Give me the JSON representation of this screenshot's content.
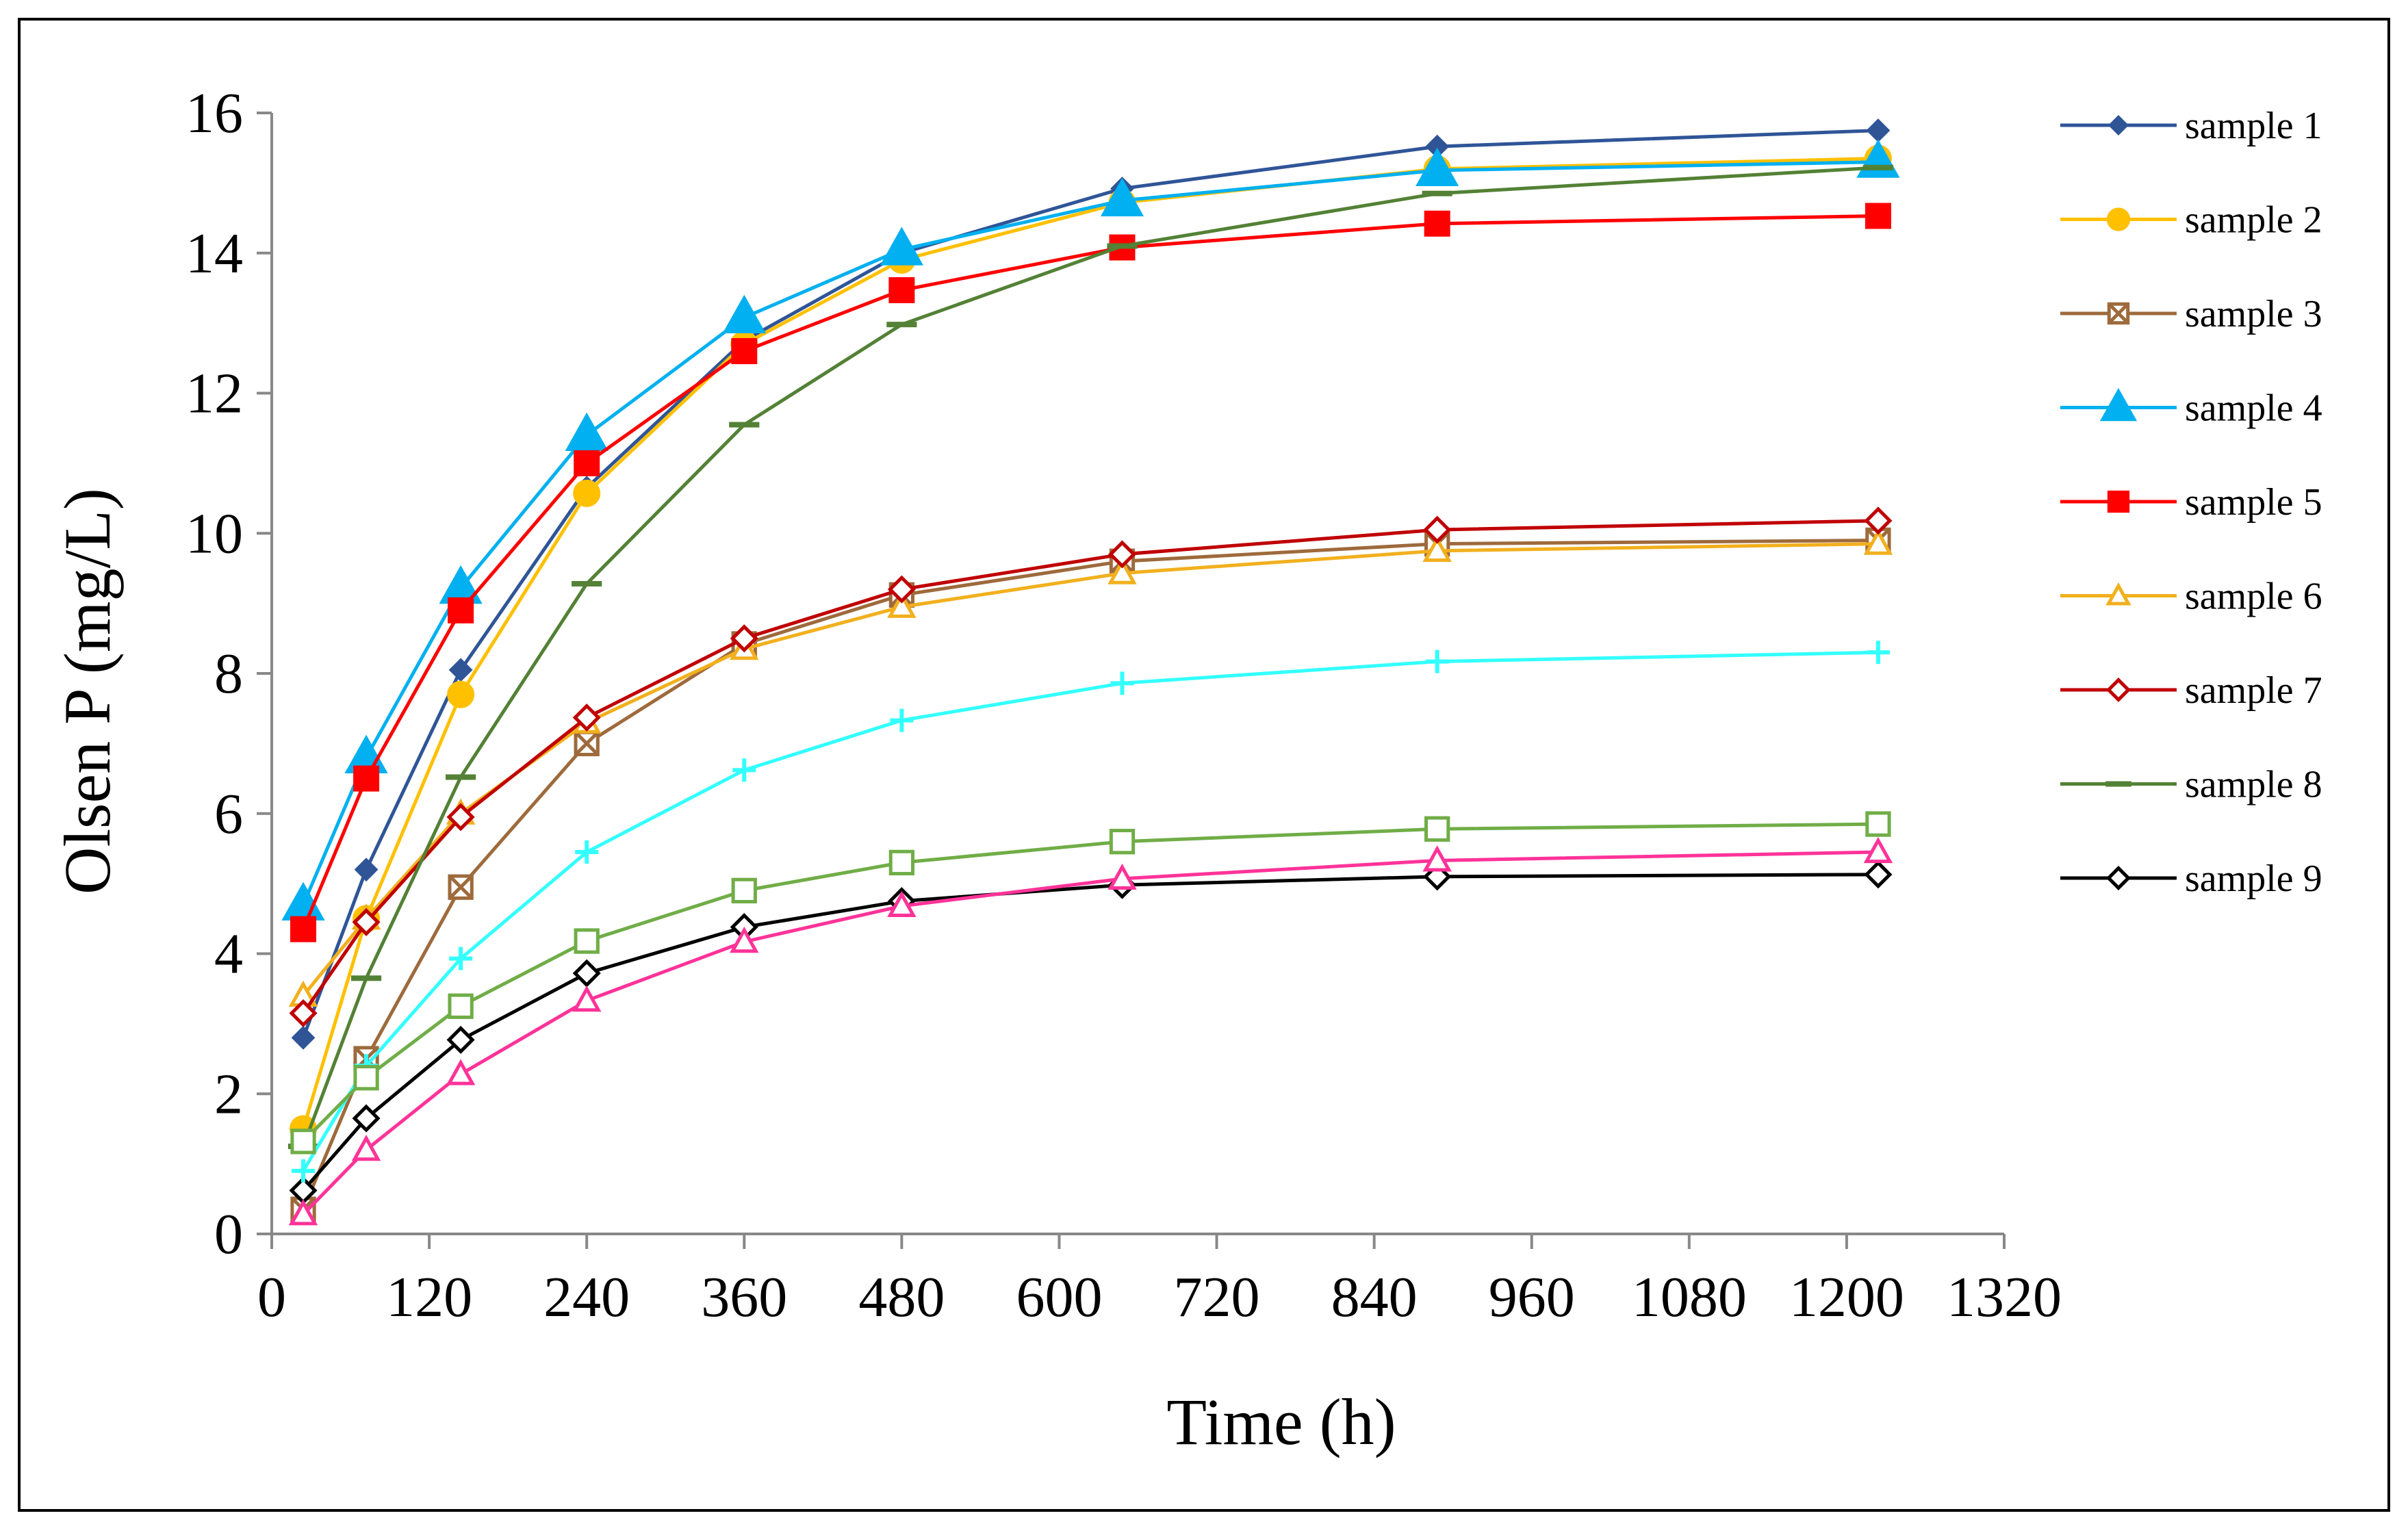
{
  "chart_data": {
    "type": "line",
    "title": "",
    "xlabel": "Time (h)",
    "ylabel": "Olsen P (mg/L)",
    "xlim": [
      0,
      1320
    ],
    "ylim": [
      0,
      16
    ],
    "xticks": [
      0,
      120,
      240,
      360,
      480,
      600,
      720,
      840,
      960,
      1080,
      1200,
      1320
    ],
    "yticks": [
      0,
      2,
      4,
      6,
      8,
      10,
      12,
      14,
      16
    ],
    "grid": false,
    "legend_position": "right",
    "x": [
      24,
      72,
      144,
      240,
      360,
      480,
      648,
      888,
      1224
    ],
    "series": [
      {
        "name": "sample 1",
        "color": "#2F5597",
        "marker": "diamond-filled",
        "values": [
          2.8,
          5.2,
          8.05,
          10.65,
          12.75,
          14.0,
          14.92,
          15.52,
          15.75
        ]
      },
      {
        "name": "sample 2",
        "color": "#FFC000",
        "marker": "circle-filled",
        "values": [
          1.5,
          4.5,
          7.7,
          10.57,
          12.7,
          13.9,
          14.72,
          15.2,
          15.35
        ]
      },
      {
        "name": "sample 3",
        "color": "#9E6A3C",
        "marker": "square-x",
        "values": [
          0.35,
          2.5,
          4.95,
          7.0,
          8.42,
          9.12,
          9.6,
          9.85,
          9.9
        ]
      },
      {
        "name": "sample 4",
        "color": "#00B0F0",
        "marker": "triangle-filled",
        "values": [
          4.7,
          6.8,
          9.22,
          11.4,
          13.08,
          14.05,
          14.75,
          15.18,
          15.3
        ]
      },
      {
        "name": "sample 5",
        "color": "#FF0000",
        "marker": "square-filled",
        "values": [
          4.35,
          6.5,
          8.9,
          11.0,
          12.6,
          13.47,
          14.08,
          14.42,
          14.53
        ]
      },
      {
        "name": "sample 6",
        "color": "#F2B01E",
        "marker": "triangle-open",
        "values": [
          3.4,
          4.5,
          6.0,
          7.3,
          8.35,
          8.95,
          9.43,
          9.75,
          9.85
        ]
      },
      {
        "name": "sample 7",
        "color": "#C00000",
        "marker": "diamond-open",
        "values": [
          3.15,
          4.45,
          5.95,
          7.37,
          8.5,
          9.2,
          9.7,
          10.05,
          10.18
        ]
      },
      {
        "name": "sample 8",
        "color": "#538135",
        "marker": "dash",
        "values": [
          1.25,
          3.65,
          6.52,
          9.28,
          11.55,
          12.98,
          14.1,
          14.85,
          15.22
        ]
      },
      {
        "name": "sample 9",
        "color": "#000000",
        "marker": "diamond-open",
        "values": [
          0.62,
          1.65,
          2.77,
          3.72,
          4.38,
          4.75,
          4.98,
          5.1,
          5.13
        ]
      },
      {
        "name": "",
        "color": "#33FFFF",
        "marker": "plus",
        "values": [
          0.9,
          2.4,
          3.93,
          5.45,
          6.62,
          7.33,
          7.86,
          8.17,
          8.3
        ]
      },
      {
        "name": "",
        "color": "#70AD47",
        "marker": "square-open",
        "values": [
          1.32,
          2.23,
          3.25,
          4.18,
          4.9,
          5.3,
          5.6,
          5.78,
          5.85
        ]
      },
      {
        "name": "",
        "color": "#FF3399",
        "marker": "triangle-open",
        "values": [
          0.28,
          1.2,
          2.28,
          3.33,
          4.17,
          4.68,
          5.07,
          5.33,
          5.45
        ]
      }
    ]
  }
}
